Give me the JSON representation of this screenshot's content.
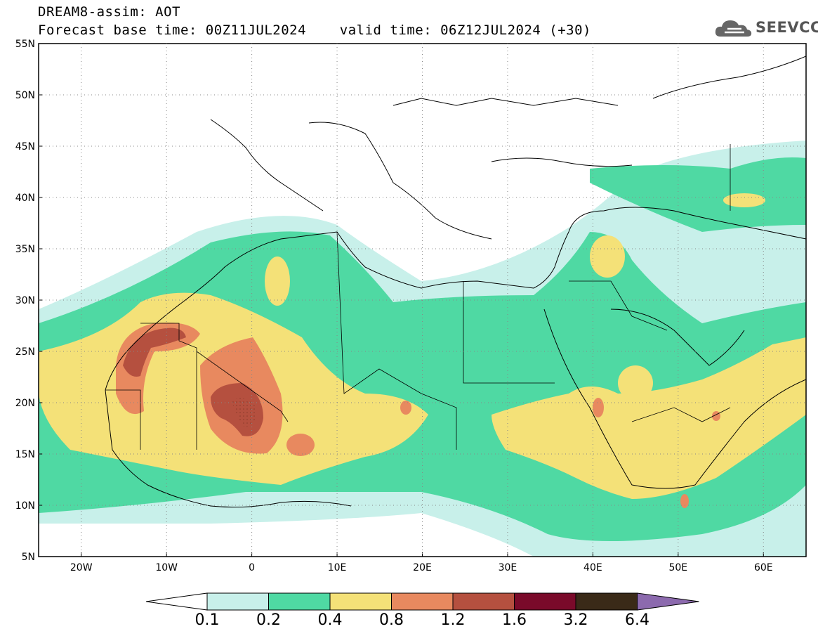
{
  "header": {
    "line1": "DREAM8-assim: AOT",
    "line2": "Forecast base time: 00Z11JUL2024    valid time: 06Z12JUL2024 (+30)"
  },
  "logo": {
    "text": "SEEVCCC",
    "icon": "cloud-icon"
  },
  "map": {
    "lat_labels": [
      "55N",
      "50N",
      "45N",
      "40N",
      "35N",
      "30N",
      "25N",
      "20N",
      "15N",
      "10N",
      "5N"
    ],
    "lon_labels": [
      "20W",
      "10W",
      "0",
      "10E",
      "20E",
      "30E",
      "40E",
      "50E",
      "60E"
    ],
    "extent": {
      "lon": [
        -25,
        65
      ],
      "lat": [
        5,
        55
      ]
    },
    "field": "AOT"
  },
  "colorbar": {
    "labels": [
      "0.1",
      "0.2",
      "0.4",
      "0.8",
      "1.2",
      "1.6",
      "3.2",
      "6.4"
    ],
    "colors": [
      "#c8f0ea",
      "#4fd9a3",
      "#f4e178",
      "#e8895f",
      "#b5503f",
      "#7a0a2a",
      "#3a2a18",
      "#8c6aae"
    ]
  }
}
